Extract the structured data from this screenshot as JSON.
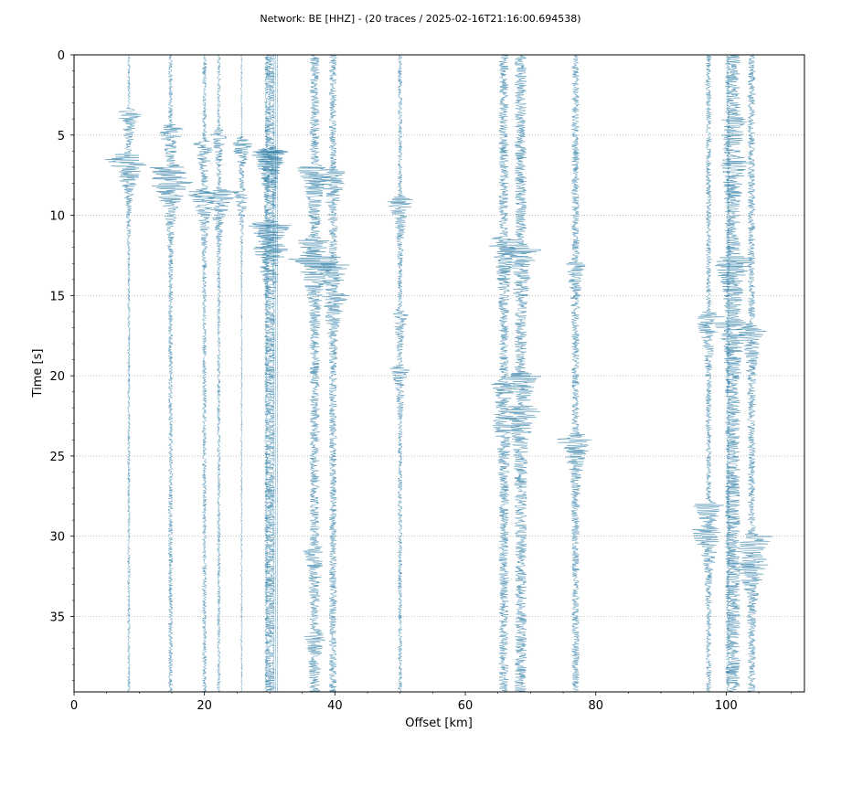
{
  "chart_data": {
    "type": "line",
    "title": "Network: BE [HHZ] - (20 traces / 2025-02-16T21:16:00.694538)",
    "xlabel": "Offset [km]",
    "ylabel": "Time [s]",
    "xlim": [
      0,
      112
    ],
    "ylim": [
      0,
      39.7
    ],
    "y_inverted": true,
    "x_ticks": [
      0,
      20,
      40,
      60,
      80,
      100
    ],
    "y_ticks": [
      0,
      5,
      10,
      15,
      20,
      25,
      30,
      35
    ],
    "grid": "horizontal dotted",
    "trace_color": "#2f7ea6",
    "traces": [
      {
        "offset": 8.4,
        "events": [
          [
            3.5,
            2.5
          ],
          [
            6.3,
            5.0
          ]
        ],
        "base": 0.25
      },
      {
        "offset": 14.8,
        "events": [
          [
            4.5,
            2.5
          ],
          [
            7.0,
            3.5
          ],
          [
            7.8,
            3.0
          ]
        ],
        "base": 0.4
      },
      {
        "offset": 20.0,
        "events": [
          [
            5.5,
            2.0
          ],
          [
            8.5,
            3.0
          ]
        ],
        "base": 0.4
      },
      {
        "offset": 22.2,
        "events": [
          [
            4.8,
            1.5
          ],
          [
            8.5,
            3.5
          ]
        ],
        "base": 0.3
      },
      {
        "offset": 25.7,
        "events": [
          [
            5.3,
            2.5
          ],
          [
            8.5,
            1.5
          ]
        ],
        "base": 0.15
      },
      {
        "offset": 29.5,
        "events": [
          [
            6.0,
            2.0
          ],
          [
            10.5,
            3.0
          ]
        ],
        "base": 0.3
      },
      {
        "offset": 30.0,
        "events": [
          [
            6.0,
            3.0
          ],
          [
            10.5,
            3.5
          ],
          [
            12.0,
            2.0
          ]
        ],
        "base": 0.9
      },
      {
        "offset": 30.6,
        "events": [
          [
            5.9,
            2.5
          ]
        ],
        "base": 0.2
      },
      {
        "offset": 31.2,
        "events": [],
        "base": 0.1
      },
      {
        "offset": 36.9,
        "events": [
          [
            7.0,
            3.0
          ],
          [
            11.5,
            2.5
          ],
          [
            12.6,
            3.5
          ],
          [
            30.8,
            1.5
          ],
          [
            36.0,
            1.5
          ]
        ],
        "base": 0.9
      },
      {
        "offset": 39.7,
        "events": [
          [
            7.3,
            3.0
          ],
          [
            13.0,
            3.0
          ],
          [
            15.0,
            2.0
          ]
        ],
        "base": 0.7
      },
      {
        "offset": 50.0,
        "events": [
          [
            9.0,
            2.5
          ],
          [
            16.0,
            1.5
          ],
          [
            19.5,
            1.5
          ]
        ],
        "base": 0.4
      },
      {
        "offset": 65.9,
        "events": [
          [
            11.5,
            2.5
          ],
          [
            20.5,
            2.0
          ],
          [
            22.5,
            1.5
          ]
        ],
        "base": 0.9
      },
      {
        "offset": 68.5,
        "events": [
          [
            12.0,
            3.5
          ],
          [
            20.0,
            3.0
          ],
          [
            22.0,
            2.5
          ]
        ],
        "base": 1.1
      },
      {
        "offset": 76.9,
        "events": [
          [
            13.0,
            1.5
          ],
          [
            23.8,
            3.5
          ]
        ],
        "base": 0.7
      },
      {
        "offset": 97.3,
        "events": [
          [
            16.2,
            3.0
          ],
          [
            28.0,
            2.5
          ],
          [
            29.5,
            3.0
          ]
        ],
        "base": 0.5
      },
      {
        "offset": 101.0,
        "events": [
          [
            4.0,
            1.5
          ],
          [
            6.5,
            1.5
          ],
          [
            12.7,
            3.0
          ],
          [
            16.7,
            2.0
          ]
        ],
        "base": 1.4
      },
      {
        "offset": 103.9,
        "events": [
          [
            17.0,
            2.5
          ],
          [
            30.0,
            3.5
          ],
          [
            31.5,
            2.5
          ]
        ],
        "base": 0.7
      },
      {
        "offset": 100.3,
        "events": [],
        "base": 0.35
      },
      {
        "offset": 30.9,
        "events": [],
        "base": 0.08
      }
    ]
  }
}
